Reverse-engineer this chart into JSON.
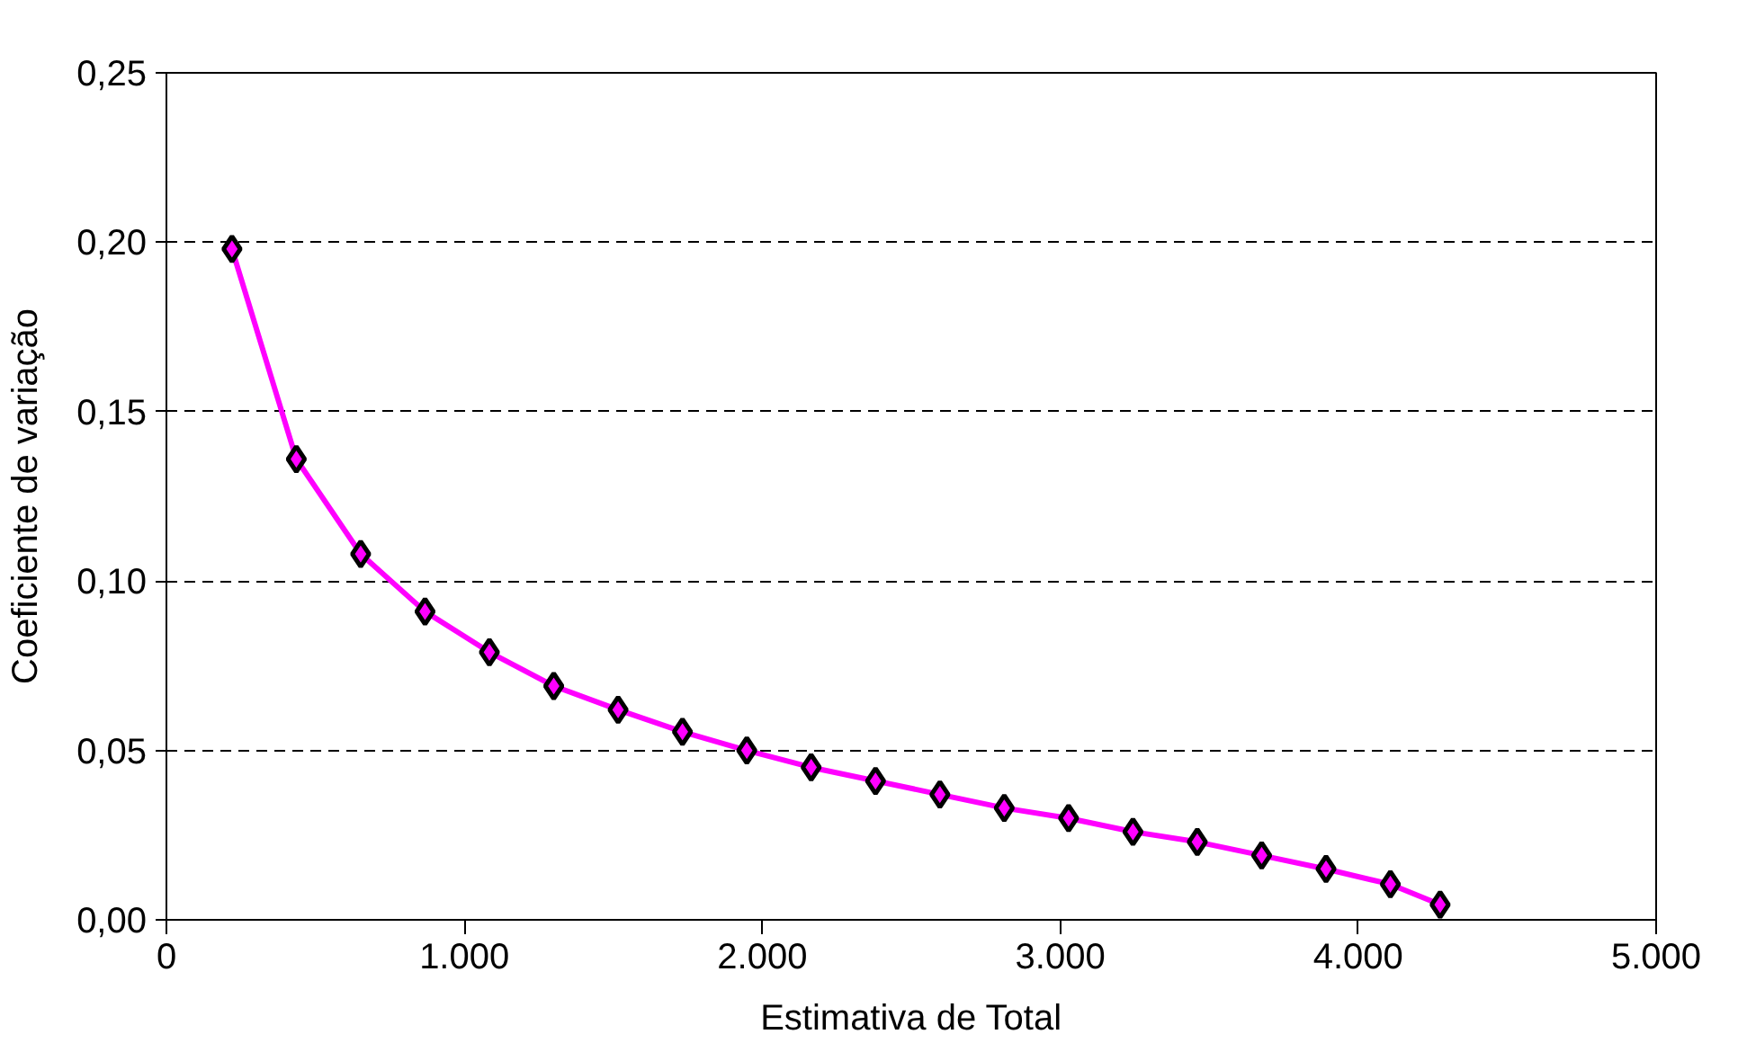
{
  "chart_data": {
    "type": "line",
    "xlabel": "Estimativa de Total",
    "ylabel": "Coeficiente de variação",
    "x": [
      220,
      436,
      652,
      868,
      1084,
      1300,
      1516,
      1732,
      1948,
      2164,
      2380,
      2596,
      2812,
      3028,
      3244,
      3460,
      3676,
      3892,
      4108,
      4275
    ],
    "series": [
      {
        "color": "#ff00ff",
        "values": [
          0.198,
          0.136,
          0.108,
          0.091,
          0.079,
          0.069,
          0.062,
          0.0555,
          0.05,
          0.045,
          0.041,
          0.037,
          0.033,
          0.03,
          0.026,
          0.023,
          0.019,
          0.015,
          0.0105,
          0.0045
        ]
      }
    ],
    "xlim": [
      0,
      5000
    ],
    "ylim": [
      0,
      0.25
    ],
    "xticks": [
      0,
      {
        "value": 1000,
        "label": "1.000"
      },
      {
        "value": 2000,
        "label": "2.000"
      },
      {
        "value": 3000,
        "label": "3.000"
      },
      {
        "value": 4000,
        "label": "4.000"
      },
      {
        "value": 5000,
        "label": "5.000"
      }
    ],
    "yticks": [
      {
        "value": 0,
        "label": "0,00"
      },
      {
        "value": 0.05,
        "label": "0,05"
      },
      {
        "value": 0.1,
        "label": "0,10"
      },
      {
        "value": 0.15,
        "label": "0,15"
      },
      {
        "value": 0.2,
        "label": "0,20"
      },
      {
        "value": 0.25,
        "label": "0,25"
      }
    ],
    "grid": "y",
    "marker": "diamond",
    "line_style": "solid"
  }
}
